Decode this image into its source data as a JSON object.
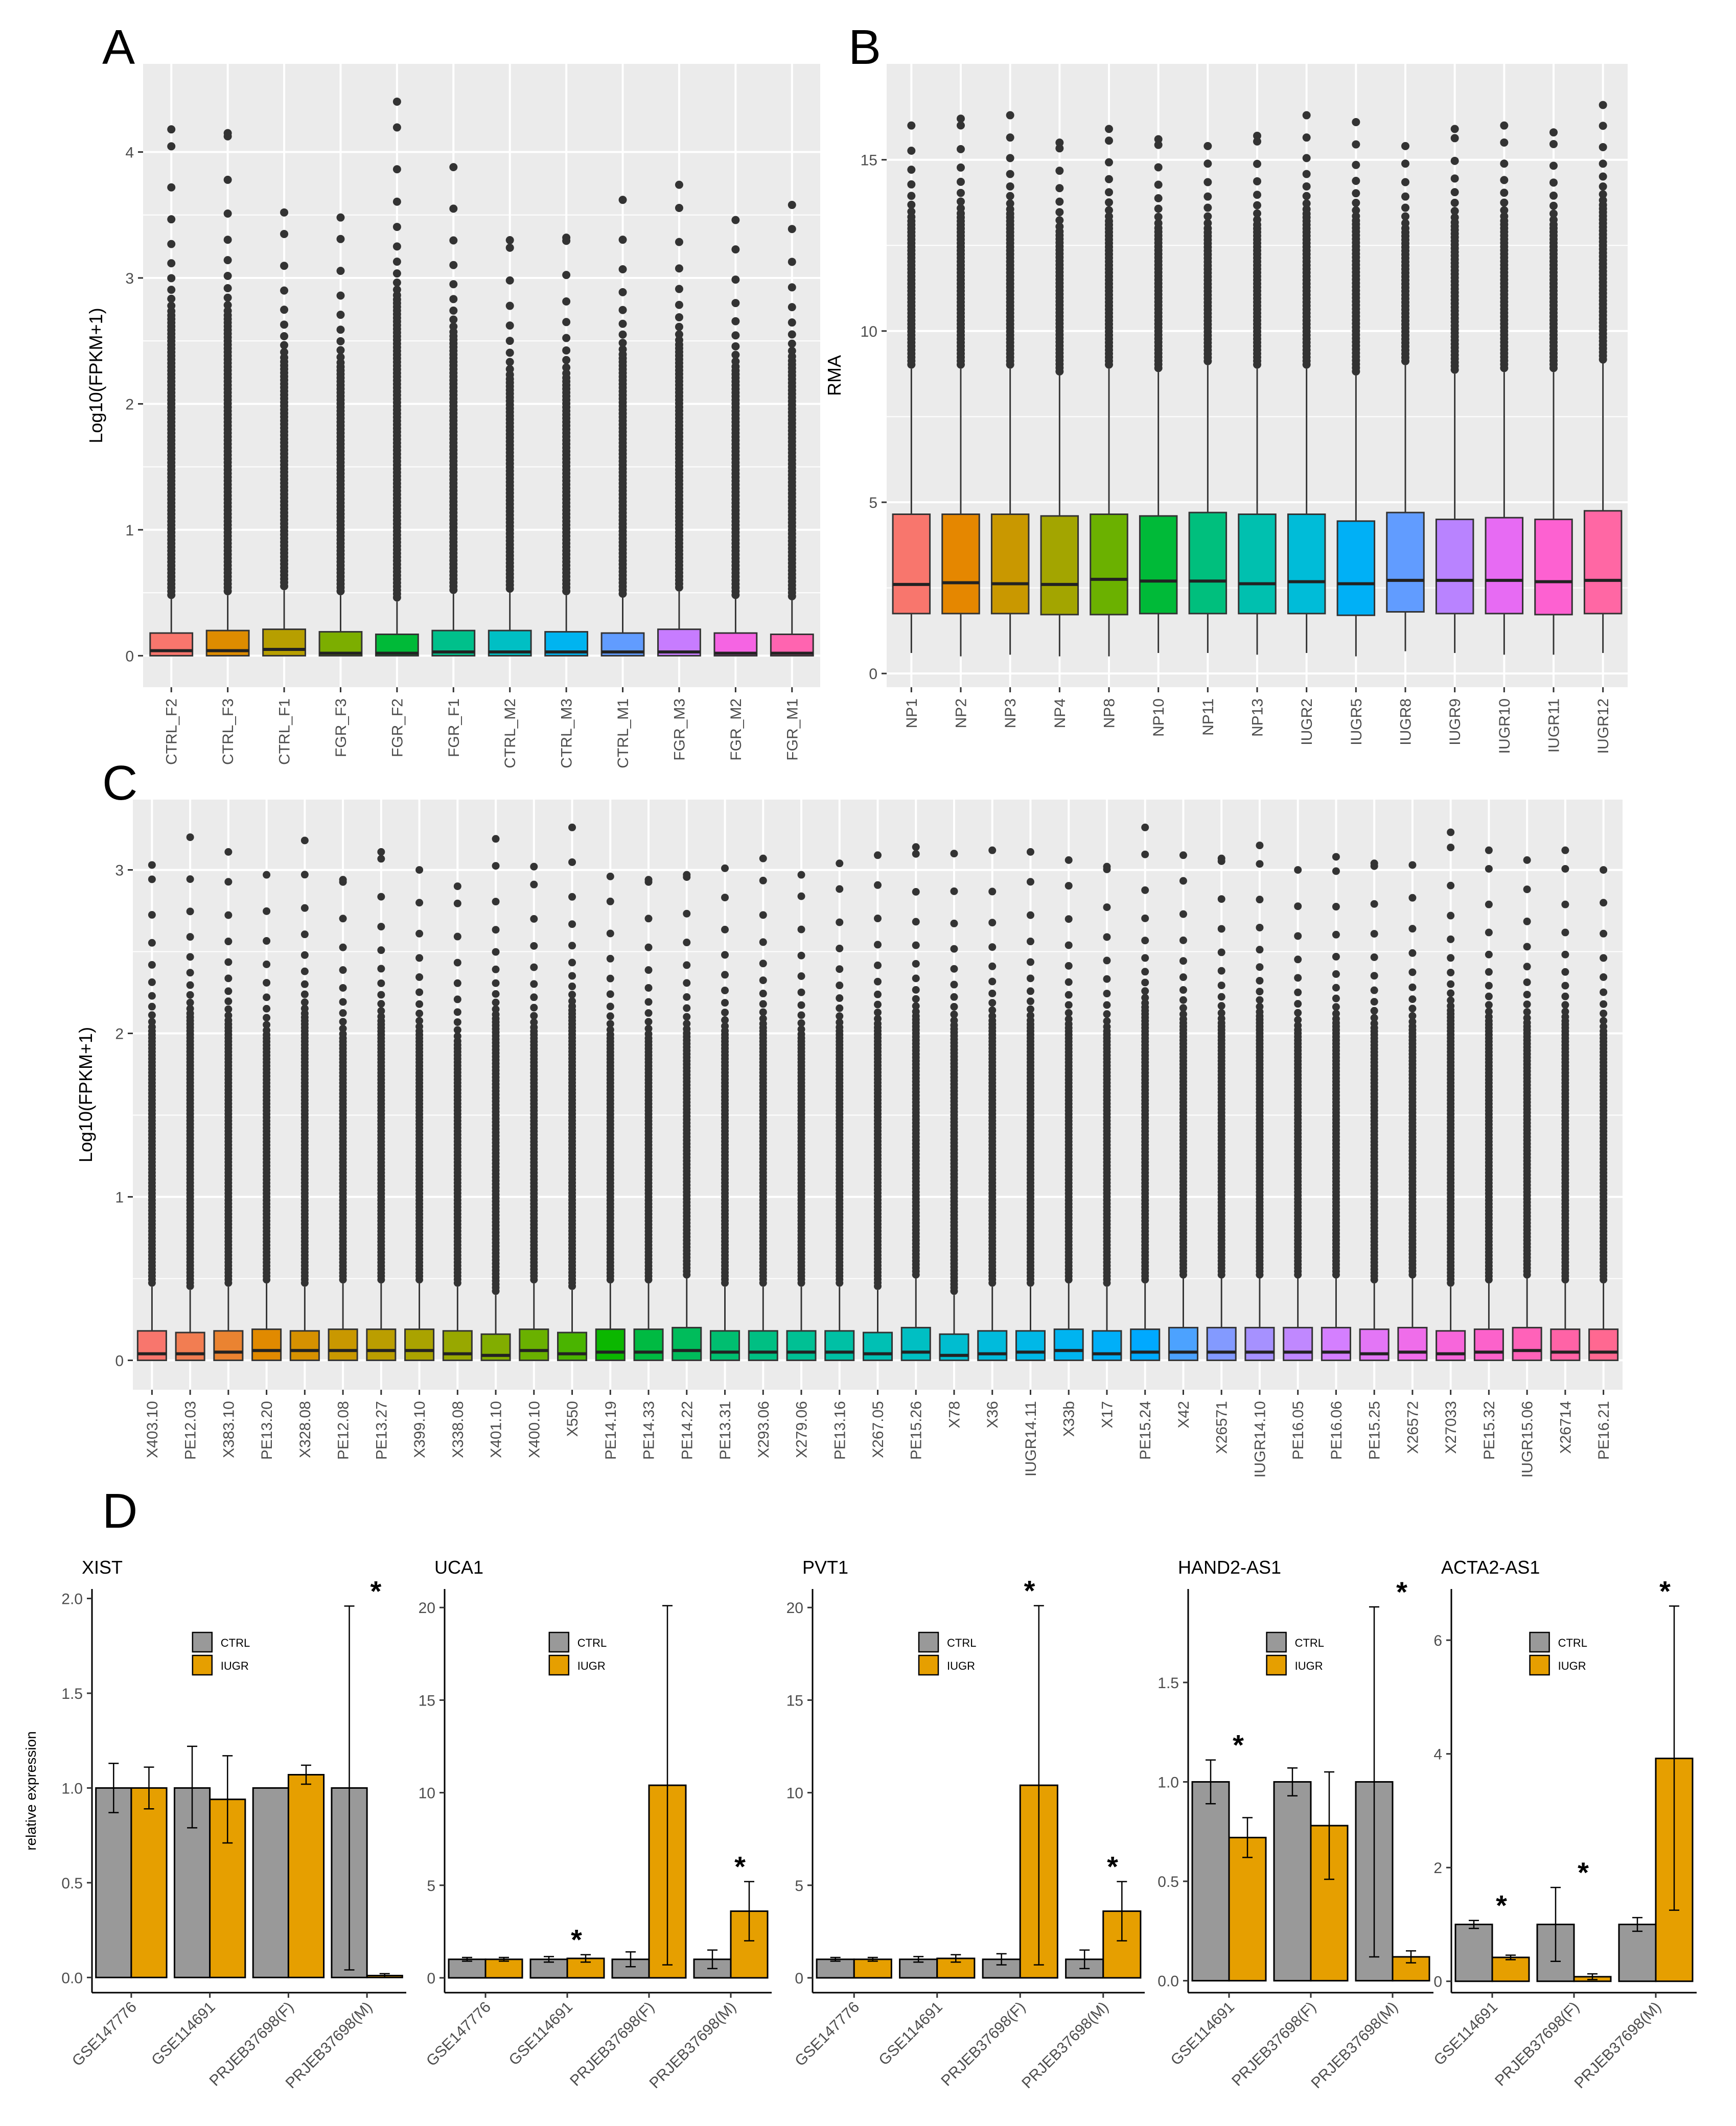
{
  "figure": {
    "panel_labels": [
      "A",
      "B",
      "C",
      "D"
    ]
  },
  "colors": {
    "ctrl": "#999999",
    "iugr": "#E69F00",
    "panel_bg": "#EBEBEB",
    "outlier": "#333333"
  },
  "chart_data": [
    {
      "panel": "A",
      "type": "box",
      "title": "",
      "xlabel": "",
      "ylabel": "Log10(FPKM+1)",
      "ylim": [
        -0.25,
        4.7
      ],
      "yticks": [
        0,
        1,
        2,
        3,
        4
      ],
      "categories": [
        "CTRL_F2",
        "CTRL_F3",
        "CTRL_F1",
        "FGR_F3",
        "FGR_F2",
        "FGR_F1",
        "CTRL_M2",
        "CTRL_M3",
        "CTRL_M1",
        "FGR_M3",
        "FGR_M2",
        "FGR_M1"
      ],
      "colors": [
        "#F8766D",
        "#DE8C00",
        "#B79F00",
        "#7CAE00",
        "#00BA38",
        "#00C08B",
        "#00BFC4",
        "#00B4F0",
        "#619CFF",
        "#C77CFF",
        "#F564E3",
        "#FF64B0"
      ],
      "q1": [
        0.0,
        0.0,
        0.0,
        0.0,
        0.0,
        0.0,
        0.0,
        0.0,
        0.0,
        0.0,
        0.0,
        0.0
      ],
      "median": [
        0.04,
        0.04,
        0.05,
        0.02,
        0.02,
        0.03,
        0.03,
        0.03,
        0.03,
        0.03,
        0.02,
        0.02
      ],
      "q3": [
        0.18,
        0.2,
        0.21,
        0.19,
        0.17,
        0.2,
        0.2,
        0.19,
        0.18,
        0.21,
        0.18,
        0.17
      ],
      "whisker_low": [
        0,
        0,
        0,
        0,
        0,
        0,
        0,
        0,
        0,
        0,
        0,
        0
      ],
      "whisker_high": [
        0.45,
        0.48,
        0.52,
        0.48,
        0.43,
        0.49,
        0.5,
        0.48,
        0.46,
        0.51,
        0.45,
        0.44
      ],
      "max": [
        4.18,
        4.15,
        3.52,
        3.48,
        4.4,
        3.88,
        3.3,
        3.32,
        3.62,
        3.74,
        3.46,
        3.58
      ]
    },
    {
      "panel": "B",
      "type": "box",
      "title": "",
      "xlabel": "",
      "ylabel": "RMA",
      "ylim": [
        -0.4,
        17.8
      ],
      "yticks": [
        0,
        5,
        10,
        15
      ],
      "categories": [
        "NP1",
        "NP2",
        "NP3",
        "NP4",
        "NP8",
        "NP10",
        "NP11",
        "NP13",
        "IUGR2",
        "IUGR5",
        "IUGR8",
        "IUGR9",
        "IUGR10",
        "IUGR11",
        "IUGR12"
      ],
      "colors": [
        "#F8766D",
        "#E58700",
        "#C99800",
        "#A3A500",
        "#6BB100",
        "#00BA38",
        "#00BF7D",
        "#00C0AF",
        "#00BCD8",
        "#00B0F6",
        "#619CFF",
        "#B983FF",
        "#E76BF3",
        "#FD61D1",
        "#FF67A4"
      ],
      "q1": [
        1.75,
        1.75,
        1.75,
        1.72,
        1.72,
        1.75,
        1.75,
        1.75,
        1.75,
        1.7,
        1.8,
        1.75,
        1.75,
        1.72,
        1.75
      ],
      "median": [
        2.6,
        2.65,
        2.62,
        2.6,
        2.75,
        2.7,
        2.7,
        2.62,
        2.68,
        2.62,
        2.72,
        2.72,
        2.72,
        2.68,
        2.72
      ],
      "q3": [
        4.65,
        4.65,
        4.65,
        4.6,
        4.65,
        4.6,
        4.7,
        4.65,
        4.65,
        4.45,
        4.7,
        4.5,
        4.55,
        4.5,
        4.75
      ],
      "whisker_low": [
        0.6,
        0.5,
        0.55,
        0.5,
        0.5,
        0.6,
        0.6,
        0.55,
        0.6,
        0.5,
        0.65,
        0.6,
        0.55,
        0.55,
        0.6
      ],
      "whisker_high": [
        8.9,
        8.9,
        8.9,
        8.7,
        8.9,
        8.8,
        9.0,
        8.9,
        8.9,
        8.7,
        9.0,
        8.75,
        8.8,
        8.8,
        9.05
      ],
      "max": [
        16.0,
        16.2,
        16.3,
        15.5,
        15.9,
        15.6,
        15.4,
        15.7,
        16.3,
        16.1,
        15.4,
        15.9,
        16.0,
        15.8,
        16.6
      ]
    },
    {
      "panel": "C",
      "type": "box",
      "title": "",
      "xlabel": "",
      "ylabel": "Log10(FPKM+1)",
      "ylim": [
        -0.18,
        3.43
      ],
      "yticks": [
        0,
        1,
        2,
        3
      ],
      "categories": [
        "X403.10",
        "PE12.03",
        "X383.10",
        "PE13.20",
        "X328.08",
        "PE12.08",
        "PE13.27",
        "X399.10",
        "X338.08",
        "X401.10",
        "X400.10",
        "X550",
        "PE14.19",
        "PE14.33",
        "PE14.22",
        "PE13.31",
        "X293.06",
        "X279.06",
        "PE13.16",
        "X267.05",
        "PE15.26",
        "X78",
        "X36",
        "IUGR14.11",
        "X33b",
        "X17",
        "PE15.24",
        "X42",
        "X26571",
        "IUGR14.10",
        "PE16.05",
        "PE16.06",
        "PE15.25",
        "X26572",
        "X27033",
        "PE15.32",
        "IUGR15.06",
        "X26714",
        "PE16.21"
      ],
      "colors": [
        "#F8766D",
        "#F27D52",
        "#EA8331",
        "#E18A00",
        "#D69100",
        "#C99800",
        "#BB9E00",
        "#AAA300",
        "#98A800",
        "#82AD00",
        "#6AB100",
        "#4AB400",
        "#0BB700",
        "#00BA42",
        "#00BC5B",
        "#00BE70",
        "#00BF83",
        "#00C094",
        "#00C0A5",
        "#00C0B4",
        "#00BFC3",
        "#00BDD0",
        "#00BBDC",
        "#00B8E7",
        "#00B4F0",
        "#00AFF8",
        "#00A9FF",
        "#4CA2FF",
        "#839AFF",
        "#A691FF",
        "#C088FF",
        "#D47FFF",
        "#E376F6",
        "#EF6DEA",
        "#F766DB",
        "#FC62CB",
        "#FF62B9",
        "#FF63A6",
        "#FF6891"
      ],
      "q1": [
        0,
        0,
        0,
        0,
        0,
        0,
        0,
        0,
        0,
        0,
        0,
        0,
        0,
        0,
        0,
        0,
        0,
        0,
        0,
        0,
        0,
        0,
        0,
        0,
        0,
        0,
        0,
        0,
        0,
        0,
        0,
        0,
        0,
        0,
        0,
        0,
        0,
        0,
        0
      ],
      "median": [
        0.04,
        0.04,
        0.05,
        0.06,
        0.06,
        0.06,
        0.06,
        0.06,
        0.04,
        0.03,
        0.06,
        0.04,
        0.05,
        0.05,
        0.06,
        0.05,
        0.05,
        0.05,
        0.05,
        0.04,
        0.05,
        0.03,
        0.04,
        0.05,
        0.06,
        0.04,
        0.05,
        0.05,
        0.05,
        0.05,
        0.05,
        0.05,
        0.04,
        0.05,
        0.04,
        0.05,
        0.06,
        0.05,
        0.05
      ],
      "q3": [
        0.18,
        0.17,
        0.18,
        0.19,
        0.18,
        0.19,
        0.19,
        0.19,
        0.18,
        0.16,
        0.19,
        0.17,
        0.19,
        0.19,
        0.2,
        0.18,
        0.18,
        0.18,
        0.18,
        0.17,
        0.2,
        0.16,
        0.18,
        0.18,
        0.19,
        0.18,
        0.19,
        0.2,
        0.2,
        0.2,
        0.2,
        0.2,
        0.19,
        0.2,
        0.18,
        0.19,
        0.2,
        0.19,
        0.19
      ],
      "whisker_low": [
        0,
        0,
        0,
        0,
        0,
        0,
        0,
        0,
        0,
        0,
        0,
        0,
        0,
        0,
        0,
        0,
        0,
        0,
        0,
        0,
        0,
        0,
        0,
        0,
        0,
        0,
        0,
        0,
        0,
        0,
        0,
        0,
        0,
        0,
        0,
        0,
        0,
        0,
        0
      ],
      "whisker_high": [
        0.45,
        0.43,
        0.45,
        0.47,
        0.45,
        0.47,
        0.47,
        0.47,
        0.45,
        0.4,
        0.47,
        0.43,
        0.47,
        0.47,
        0.5,
        0.45,
        0.45,
        0.45,
        0.45,
        0.43,
        0.5,
        0.4,
        0.45,
        0.45,
        0.47,
        0.45,
        0.47,
        0.5,
        0.5,
        0.5,
        0.5,
        0.5,
        0.47,
        0.5,
        0.45,
        0.47,
        0.5,
        0.47,
        0.47
      ],
      "max": [
        3.03,
        3.2,
        3.11,
        2.97,
        3.18,
        2.94,
        3.11,
        3.0,
        2.9,
        3.19,
        3.02,
        3.26,
        2.96,
        2.94,
        2.97,
        3.01,
        3.07,
        2.97,
        3.04,
        3.09,
        3.14,
        3.1,
        3.12,
        3.11,
        3.06,
        3.02,
        3.26,
        3.09,
        3.07,
        3.15,
        3.0,
        3.08,
        3.04,
        3.03,
        3.23,
        3.12,
        3.06,
        3.12,
        3.0
      ]
    },
    {
      "panel": "D",
      "type": "bar",
      "ylabel": "relative expression",
      "legend": [
        "CTRL",
        "IUGR"
      ],
      "legend_position": "top-center",
      "subplots": [
        {
          "title": "XIST",
          "ylim": [
            -0.08,
            2.05
          ],
          "yticks": [
            "0.0",
            "0.5",
            "1.0",
            "1.5",
            "2.0"
          ],
          "categories": [
            "GSE147776",
            "GSE114691",
            "PRJEB37698(F)",
            "PRJEB37698(M)"
          ],
          "series": [
            {
              "name": "CTRL",
              "values": [
                1.0,
                1.0,
                1.0,
                1.0
              ],
              "err_low": [
                0.87,
                0.79,
                1.0,
                0.04
              ],
              "err_high": [
                1.13,
                1.22,
                1.0,
                1.96
              ]
            },
            {
              "name": "IUGR",
              "values": [
                1.0,
                0.94,
                1.07,
                0.01
              ],
              "err_low": [
                0.89,
                0.71,
                1.02,
                0.0
              ],
              "err_high": [
                1.11,
                1.17,
                1.12,
                0.02
              ]
            }
          ],
          "significance": [
            {
              "category": "PRJEB37698(M)",
              "label": "*"
            }
          ]
        },
        {
          "title": "UCA1",
          "ylim": [
            -0.8,
            21.0
          ],
          "yticks": [
            "0",
            "5",
            "10",
            "15",
            "20"
          ],
          "categories": [
            "GSE147776",
            "GSE114691",
            "PRJEB37698(F)",
            "PRJEB37698(M)"
          ],
          "series": [
            {
              "name": "CTRL",
              "values": [
                1.0,
                1.0,
                1.0,
                1.0
              ],
              "err_low": [
                0.9,
                0.85,
                0.6,
                0.5
              ],
              "err_high": [
                1.1,
                1.15,
                1.4,
                1.5
              ]
            },
            {
              "name": "IUGR",
              "values": [
                1.0,
                1.05,
                10.4,
                3.6
              ],
              "err_low": [
                0.9,
                0.85,
                0.7,
                2.0
              ],
              "err_high": [
                1.1,
                1.25,
                20.1,
                5.2
              ]
            }
          ],
          "significance": [
            {
              "category": "GSE114691",
              "label": "*"
            },
            {
              "category": "PRJEB37698(M)",
              "label": "*"
            }
          ]
        },
        {
          "title": "PVT1",
          "ylim": [
            -0.8,
            21.0
          ],
          "yticks": [
            "0",
            "5",
            "10",
            "15",
            "20"
          ],
          "categories": [
            "GSE147776",
            "GSE114691",
            "PRJEB37698(F)",
            "PRJEB37698(M)"
          ],
          "series": [
            {
              "name": "CTRL",
              "values": [
                1.0,
                1.0,
                1.0,
                1.0
              ],
              "err_low": [
                0.9,
                0.85,
                0.7,
                0.5
              ],
              "err_high": [
                1.1,
                1.15,
                1.3,
                1.5
              ]
            },
            {
              "name": "IUGR",
              "values": [
                1.0,
                1.05,
                10.4,
                3.6
              ],
              "err_low": [
                0.9,
                0.85,
                0.7,
                2.0
              ],
              "err_high": [
                1.1,
                1.25,
                20.1,
                5.2
              ]
            }
          ],
          "significance": [
            {
              "category": "PRJEB37698(F)",
              "label": "*"
            },
            {
              "category": "PRJEB37698(M)",
              "label": "*"
            }
          ]
        },
        {
          "title": "HAND2-AS1",
          "ylim": [
            -0.06,
            1.97
          ],
          "yticks": [
            "0.0",
            "0.5",
            "1.0",
            "1.5"
          ],
          "categories": [
            "GSE114691",
            "PRJEB37698(F)",
            "PRJEB37698(M)"
          ],
          "series": [
            {
              "name": "CTRL",
              "values": [
                1.0,
                1.0,
                1.0
              ],
              "err_low": [
                0.89,
                0.93,
                0.12
              ],
              "err_high": [
                1.11,
                1.07,
                1.88
              ]
            },
            {
              "name": "IUGR",
              "values": [
                0.72,
                0.78,
                0.12
              ],
              "err_low": [
                0.62,
                0.51,
                0.09
              ],
              "err_high": [
                0.82,
                1.05,
                0.15
              ]
            }
          ],
          "significance": [
            {
              "category": "GSE114691",
              "label": "*"
            },
            {
              "category": "PRJEB37698(M)",
              "label": "*"
            }
          ]
        },
        {
          "title": "ACTA2-AS1",
          "ylim": [
            -0.2,
            6.9
          ],
          "yticks": [
            "0",
            "2",
            "4",
            "6"
          ],
          "categories": [
            "GSE114691",
            "PRJEB37698(F)",
            "PRJEB37698(M)"
          ],
          "series": [
            {
              "name": "CTRL",
              "values": [
                1.0,
                1.0,
                1.0
              ],
              "err_low": [
                0.93,
                0.35,
                0.88
              ],
              "err_high": [
                1.07,
                1.65,
                1.12
              ]
            },
            {
              "name": "IUGR",
              "values": [
                0.42,
                0.08,
                3.92
              ],
              "err_low": [
                0.38,
                0.03,
                1.25
              ],
              "err_high": [
                0.46,
                0.13,
                6.6
              ]
            }
          ],
          "significance": [
            {
              "category": "GSE114691",
              "label": "*"
            },
            {
              "category": "PRJEB37698(F)",
              "label": "*"
            },
            {
              "category": "PRJEB37698(M)",
              "label": "*"
            }
          ]
        }
      ]
    }
  ]
}
